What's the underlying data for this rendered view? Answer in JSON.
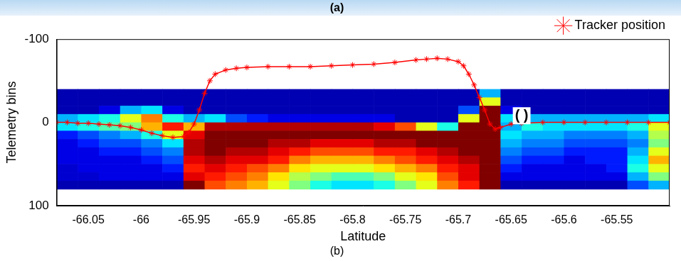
{
  "chart_data": {
    "type": "heatmap",
    "title": "(a)",
    "caption": "(b)",
    "x_label": "Latitude",
    "y_label": "Telemetry bins",
    "xlim": [
      -66.08,
      -65.5
    ],
    "xticks": [
      -66.05,
      -66,
      -65.95,
      -65.9,
      -65.85,
      -65.8,
      -65.75,
      -65.7,
      -65.65,
      -65.6,
      -65.55
    ],
    "ylim": [
      100,
      -100
    ],
    "yticks": [
      -100,
      0,
      100
    ],
    "grid": false,
    "legend": "top-right",
    "series": [
      {
        "name": "Tracker position",
        "type": "line",
        "color": "#ff0000",
        "marker": "star",
        "line_style": "solid",
        "x": [
          -66.08,
          -66.07,
          -66.06,
          -66.05,
          -66.04,
          -66.03,
          -66.02,
          -66.01,
          -66.0,
          -65.99,
          -65.98,
          -65.97,
          -65.96,
          -65.955,
          -65.95,
          -65.945,
          -65.94,
          -65.935,
          -65.93,
          -65.92,
          -65.91,
          -65.9,
          -65.88,
          -65.86,
          -65.84,
          -65.82,
          -65.8,
          -65.78,
          -65.76,
          -65.74,
          -65.73,
          -65.72,
          -65.71,
          -65.7,
          -65.695,
          -65.69,
          -65.685,
          -65.68,
          -65.675,
          -65.67,
          -65.665,
          -65.66,
          -65.65,
          -65.64,
          -65.62,
          -65.6,
          -65.58,
          -65.56,
          -65.54,
          -65.52,
          -65.5
        ],
        "values": [
          0,
          0,
          1,
          1,
          2,
          3,
          4,
          6,
          9,
          13,
          16,
          18,
          17,
          12,
          2,
          -15,
          -35,
          -50,
          -58,
          -63,
          -65,
          -66,
          -67,
          -67,
          -67,
          -68,
          -69,
          -70,
          -72,
          -75,
          -76,
          -77,
          -76,
          -73,
          -68,
          -58,
          -45,
          -30,
          -15,
          2,
          8,
          6,
          2,
          1,
          0,
          0,
          0,
          0,
          0,
          0,
          0
        ]
      }
    ],
    "heatmap": {
      "x_edges": [
        -66.08,
        -66.06,
        -66.04,
        -66.02,
        -66.0,
        -65.98,
        -65.96,
        -65.94,
        -65.92,
        -65.9,
        -65.88,
        -65.86,
        -65.84,
        -65.82,
        -65.8,
        -65.78,
        -65.76,
        -65.74,
        -65.72,
        -65.7,
        -65.68,
        -65.66,
        -65.64,
        -65.62,
        -65.6,
        -65.58,
        -65.56,
        -65.54,
        -65.52,
        -65.5
      ],
      "y_edges": [
        -40,
        -30,
        -20,
        -10,
        0,
        10,
        20,
        30,
        40,
        50,
        60,
        70,
        80
      ],
      "color_range": [
        0,
        1
      ],
      "cells": [
        [
          0.05,
          0.05,
          0.05,
          0.3,
          0.35,
          0.15,
          0.1,
          0.1,
          0.1,
          0.08,
          0.08,
          0.05
        ],
        [
          0.05,
          0.05,
          0.05,
          0.35,
          0.4,
          0.2,
          0.15,
          0.1,
          0.1,
          0.1,
          0.08,
          0.05
        ],
        [
          0.05,
          0.05,
          0.1,
          0.4,
          0.45,
          0.25,
          0.2,
          0.15,
          0.1,
          0.1,
          0.1,
          0.05
        ],
        [
          0.05,
          0.05,
          0.3,
          0.6,
          0.5,
          0.3,
          0.2,
          0.15,
          0.1,
          0.1,
          0.1,
          0.05
        ],
        [
          0.05,
          0.05,
          0.35,
          0.75,
          0.7,
          0.4,
          0.25,
          0.2,
          0.15,
          0.1,
          0.1,
          0.05
        ],
        [
          0.05,
          0.05,
          0.1,
          0.4,
          0.85,
          0.6,
          0.35,
          0.25,
          0.2,
          0.15,
          0.1,
          0.05
        ],
        [
          0.05,
          0.05,
          0.05,
          0.3,
          0.7,
          0.9,
          0.95,
          0.95,
          0.9,
          0.85,
          0.9,
          1
        ],
        [
          0.05,
          0.05,
          0.05,
          0.35,
          0.95,
          1,
          1,
          1,
          0.95,
          0.9,
          0.85,
          0.8
        ],
        [
          0.05,
          0.05,
          0.05,
          0.2,
          0.95,
          1,
          1,
          0.95,
          0.9,
          0.85,
          0.8,
          0.75
        ],
        [
          0.05,
          0.05,
          0.05,
          0.15,
          0.95,
          1,
          1,
          0.95,
          0.9,
          0.8,
          0.75,
          0.7
        ],
        [
          0.05,
          0.05,
          0.05,
          0.1,
          0.95,
          1,
          0.95,
          0.9,
          0.85,
          0.75,
          0.65,
          0.6
        ],
        [
          0.05,
          0.05,
          0.05,
          0.1,
          0.95,
          1,
          0.95,
          0.85,
          0.75,
          0.65,
          0.55,
          0.5
        ],
        [
          0.05,
          0.05,
          0.05,
          0.1,
          0.95,
          1,
          0.9,
          0.8,
          0.7,
          0.6,
          0.5,
          0.4
        ],
        [
          0.05,
          0.05,
          0.05,
          0.1,
          0.95,
          1,
          0.9,
          0.8,
          0.7,
          0.6,
          0.45,
          0.35
        ],
        [
          0.05,
          0.05,
          0.05,
          0.1,
          0.95,
          1,
          0.9,
          0.8,
          0.7,
          0.6,
          0.45,
          0.35
        ],
        [
          0.05,
          0.05,
          0.05,
          0.1,
          0.9,
          1,
          0.95,
          0.85,
          0.75,
          0.65,
          0.5,
          0.4
        ],
        [
          0.05,
          0.05,
          0.05,
          0.05,
          0.8,
          1,
          0.95,
          0.85,
          0.8,
          0.7,
          0.6,
          0.5
        ],
        [
          0.05,
          0.05,
          0.05,
          0.05,
          0.6,
          1,
          1,
          0.9,
          0.85,
          0.75,
          0.65,
          0.6
        ],
        [
          0.05,
          0.05,
          0.05,
          0.05,
          0.4,
          1,
          1,
          0.95,
          0.9,
          0.85,
          0.8,
          0.75
        ],
        [
          0.05,
          0.05,
          0.2,
          0.6,
          1,
          1,
          1,
          1,
          0.95,
          0.9,
          0.9,
          0.85
        ],
        [
          0.3,
          0.6,
          1,
          1,
          1,
          1,
          1,
          1,
          1,
          1,
          1,
          1
        ],
        [
          0.05,
          0.05,
          0.1,
          0.35,
          0.3,
          0.35,
          0.3,
          0.25,
          0.2,
          0.15,
          0.1,
          0.05
        ],
        [
          0.05,
          0.05,
          0.05,
          0.3,
          0.4,
          0.3,
          0.25,
          0.2,
          0.15,
          0.1,
          0.1,
          0.05
        ],
        [
          0.05,
          0.05,
          0.05,
          0.3,
          0.35,
          0.3,
          0.25,
          0.2,
          0.15,
          0.1,
          0.1,
          0.05
        ],
        [
          0.05,
          0.05,
          0.05,
          0.3,
          0.35,
          0.25,
          0.2,
          0.15,
          0.1,
          0.1,
          0.1,
          0.05
        ],
        [
          0.05,
          0.05,
          0.05,
          0.3,
          0.35,
          0.25,
          0.2,
          0.15,
          0.15,
          0.1,
          0.1,
          0.05
        ],
        [
          0.05,
          0.05,
          0.05,
          0.3,
          0.35,
          0.25,
          0.2,
          0.15,
          0.15,
          0.15,
          0.1,
          0.05
        ],
        [
          0.05,
          0.05,
          0.05,
          0.3,
          0.4,
          0.3,
          0.25,
          0.3,
          0.35,
          0.4,
          0.3,
          0.2
        ],
        [
          0.05,
          0.05,
          0.05,
          0.35,
          0.6,
          0.55,
          0.5,
          0.6,
          0.7,
          0.6,
          0.5,
          0.3
        ]
      ]
    },
    "annotations": [
      {
        "text": "( )",
        "x": -65.64,
        "y": -8
      }
    ]
  }
}
